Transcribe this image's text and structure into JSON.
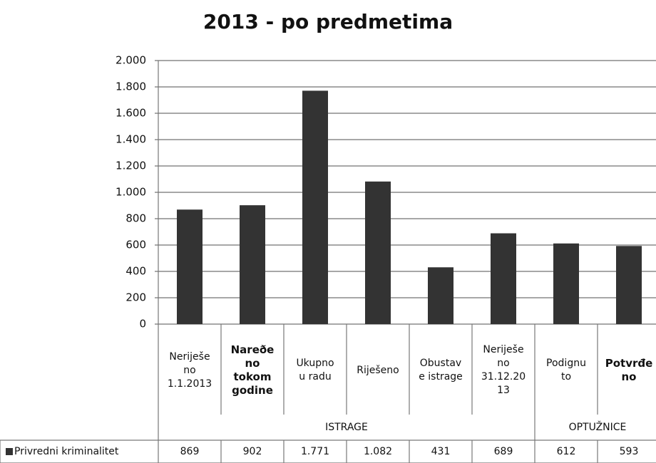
{
  "chart_data": {
    "type": "bar",
    "title": "2013 - po predmetima",
    "categories": [
      "Neriješe\nno\n1.1.2013",
      "Nareðe\nno\ntokom\ngodine",
      "Ukupno\nu radu",
      "Riješeno",
      "Obustav\ne istrage",
      "Neriješe\nno\n31.12.20\n13",
      "Podignu\nto",
      "Potvrđe\nno"
    ],
    "groups": [
      {
        "label": "ISTRAGE",
        "span": 6
      },
      {
        "label": "OPTUŽNICE",
        "span": 2
      }
    ],
    "series": [
      {
        "name": "Privredni kriminalitet",
        "color": "#333333",
        "values": [
          869,
          902,
          1771,
          1082,
          431,
          689,
          612,
          593
        ],
        "value_labels": [
          "869",
          "902",
          "1.771",
          "1.082",
          "431",
          "689",
          "612",
          "593"
        ]
      }
    ],
    "ylim": [
      0,
      2000
    ],
    "yticks": [
      0,
      200,
      400,
      600,
      800,
      {
        "value": 1000,
        "label": "1.000"
      },
      {
        "value": 1200,
        "label": "1.200"
      },
      {
        "value": 1400,
        "label": "1.400"
      },
      {
        "value": 1600,
        "label": "1.600"
      },
      {
        "value": 1800,
        "label": "1.800"
      },
      {
        "value": 2000,
        "label": "2.000"
      }
    ],
    "grid": true
  }
}
